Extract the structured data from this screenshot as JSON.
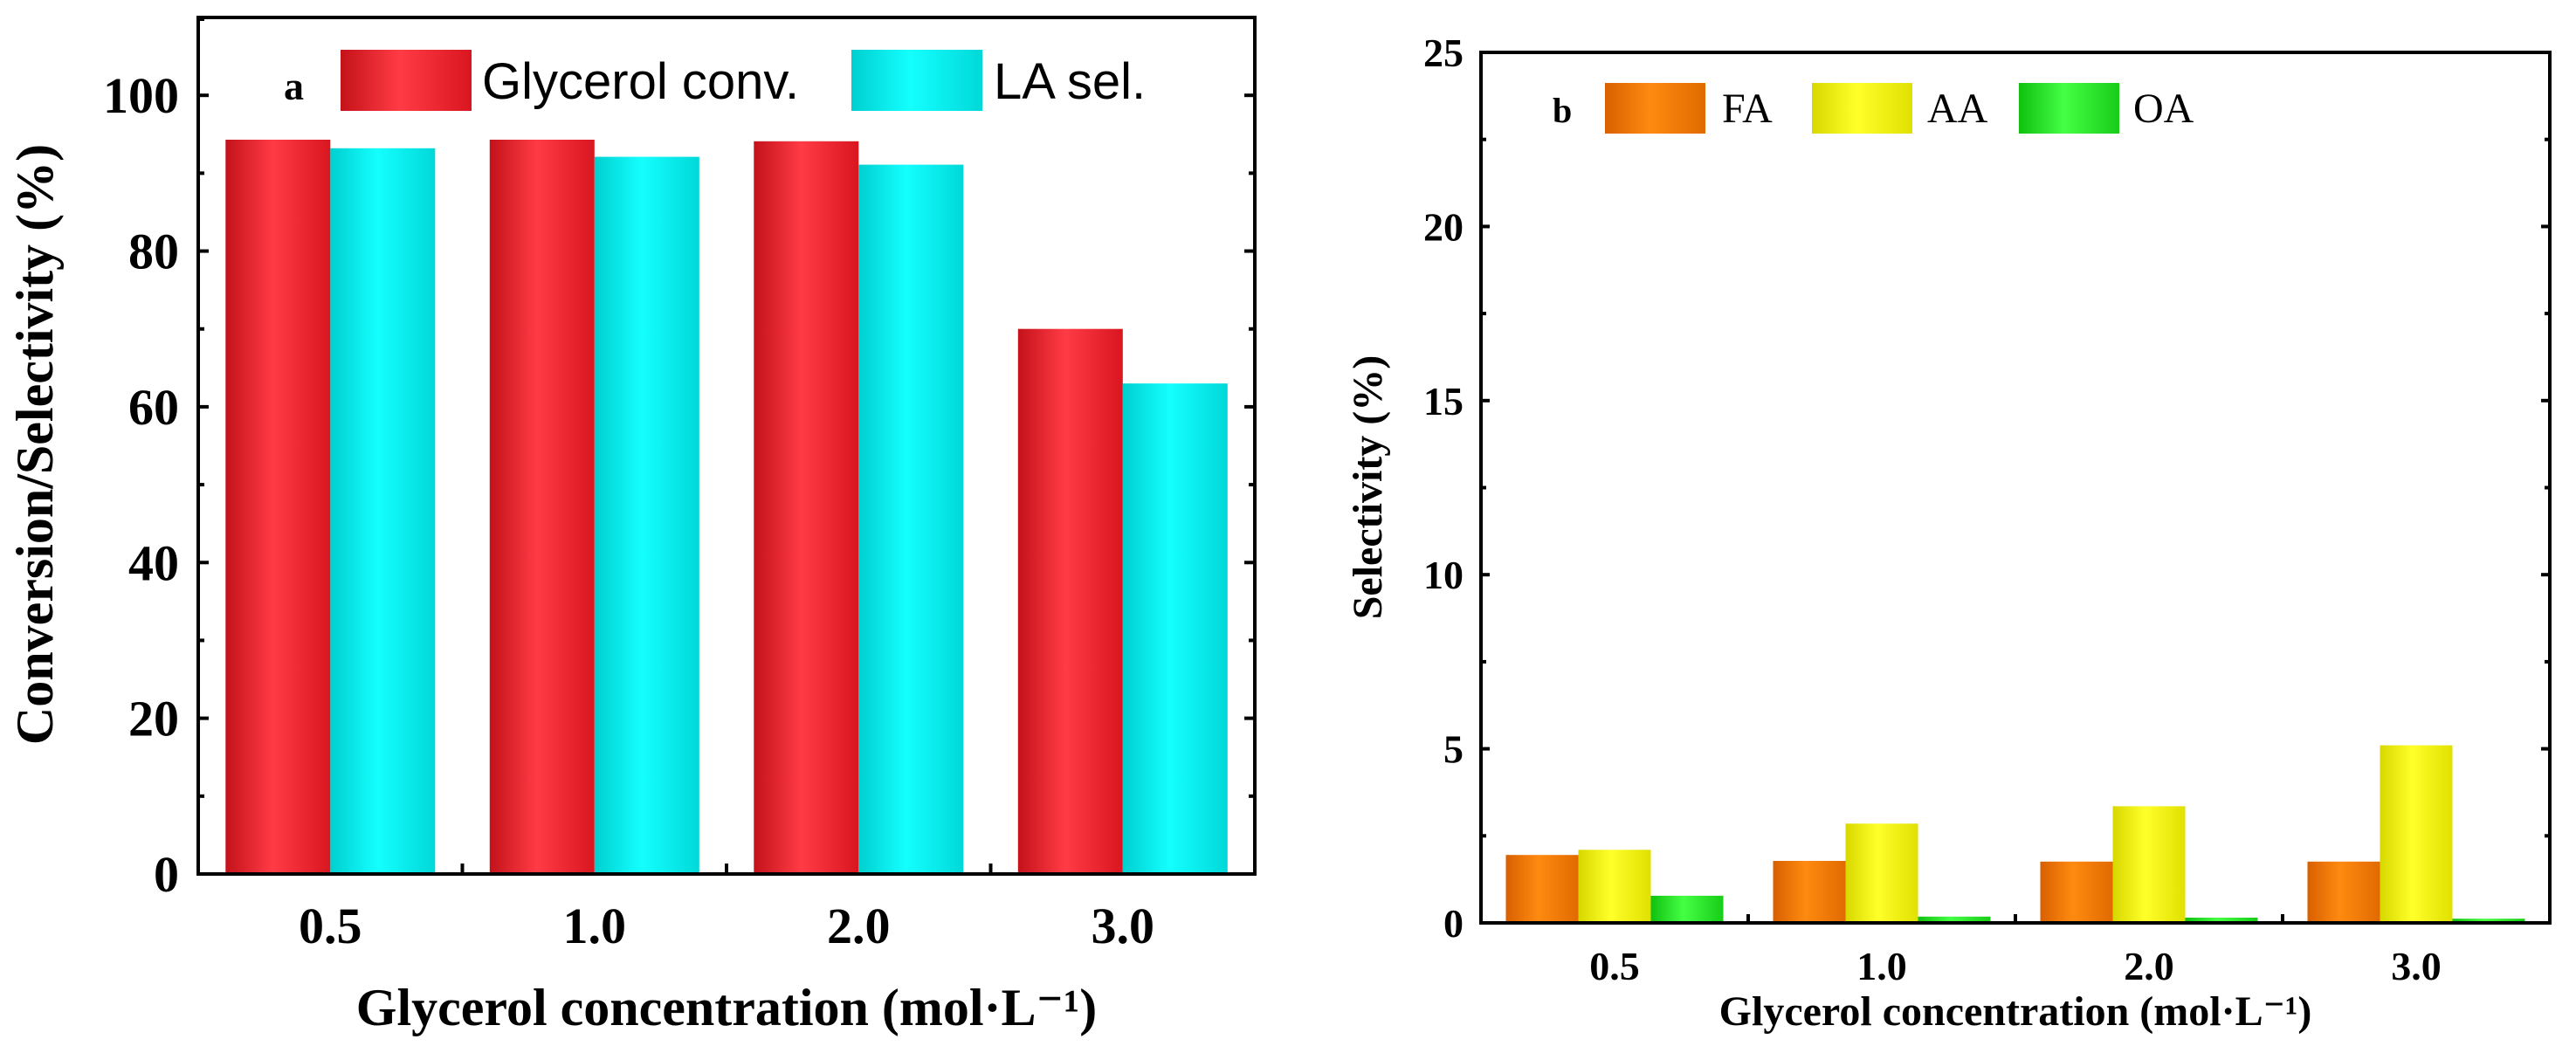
{
  "chart_data": [
    {
      "panel": "a",
      "type": "bar",
      "categories": [
        "0.5",
        "1.0",
        "2.0",
        "3.0"
      ],
      "series": [
        {
          "name": "Glycerol conv.",
          "color": "#ee1c25",
          "values": [
            94.3,
            94.3,
            94.1,
            70.0
          ]
        },
        {
          "name": "LA sel.",
          "color": "#00e5e5",
          "values": [
            93.2,
            92.1,
            91.1,
            63.0
          ]
        }
      ],
      "xlabel": "Glycerol concentration (mol·L⁻¹)",
      "ylabel": "Conversion/Selectivity (%)",
      "ylim": [
        0,
        110
      ],
      "yticks": [
        "0",
        "20",
        "40",
        "60",
        "80",
        "100"
      ],
      "legend": "top"
    },
    {
      "panel": "b",
      "type": "bar",
      "categories": [
        "0.5",
        "1.0",
        "2.0",
        "3.0"
      ],
      "series": [
        {
          "name": "FA",
          "color": "#f07800",
          "values": [
            1.95,
            1.78,
            1.76,
            1.76
          ]
        },
        {
          "name": "AA",
          "color": "#f0f000",
          "values": [
            2.1,
            2.85,
            3.35,
            5.1
          ]
        },
        {
          "name": "OA",
          "color": "#22dd22",
          "values": [
            0.78,
            0.18,
            0.15,
            0.12
          ]
        }
      ],
      "xlabel": "Glycerol concentration (mol·L⁻¹)",
      "ylabel": "Selectivity (%)",
      "ylim": [
        0,
        25
      ],
      "yticks": [
        "0",
        "5",
        "10",
        "15",
        "20",
        "25"
      ],
      "legend": "top"
    }
  ]
}
